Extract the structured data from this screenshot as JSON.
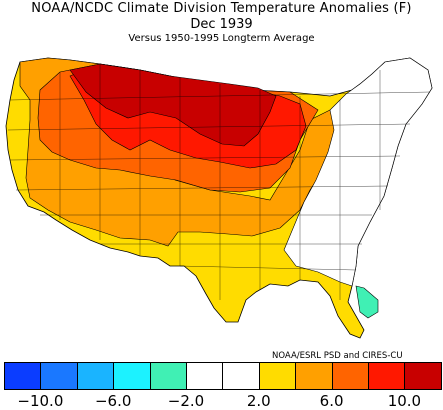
{
  "title": "NOAA/NCDC Climate Division Temperature Anomalies (F)",
  "subtitle": "Dec 1939",
  "baseline": "Versus 1950-1995 Longterm Average",
  "credit": "NOAA/ESRL PSD and CIRES-CU",
  "legend": {
    "colors": [
      "#0b3dff",
      "#1a78ff",
      "#1ab4ff",
      "#1cf2ff",
      "#40f0b4",
      "#ffffff",
      "#ffffff",
      "#ffdc00",
      "#ffa000",
      "#ff6400",
      "#ff1800",
      "#c80000"
    ],
    "tick_labels": [
      "−10.0",
      "−6.0",
      "−2.0",
      "2.0",
      "6.0",
      "10.0"
    ]
  },
  "regions": [
    {
      "name": "north-central-max",
      "category": "10+",
      "color": "#c80000"
    },
    {
      "name": "northern-plains",
      "category": "8-10",
      "color": "#ff1800"
    },
    {
      "name": "west-and-central",
      "category": "6-8",
      "color": "#ff6400"
    },
    {
      "name": "west-coast-southwest",
      "category": "4-6",
      "color": "#ffa000"
    },
    {
      "name": "south-and-ohio-valley",
      "category": "2-4",
      "color": "#ffdc00"
    },
    {
      "name": "east-and-southeast",
      "category": "-2-2",
      "color": "#ffffff"
    },
    {
      "name": "south-florida",
      "category": "-4--2",
      "color": "#40f0b4"
    }
  ]
}
